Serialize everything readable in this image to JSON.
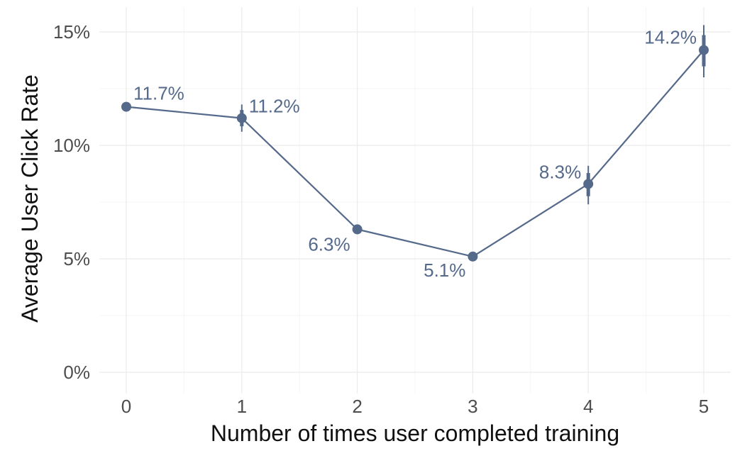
{
  "chart_data": {
    "type": "line",
    "title": "",
    "xlabel": "Number of times user completed training",
    "ylabel": "Average User Click Rate",
    "x": [
      0,
      1,
      2,
      3,
      4,
      5
    ],
    "x_tick_labels": [
      "0",
      "1",
      "2",
      "3",
      "4",
      "5"
    ],
    "xlim": [
      0,
      5
    ],
    "ylim": [
      0,
      15
    ],
    "y_ticks": [
      0,
      5,
      10,
      15
    ],
    "y_tick_labels": [
      "0%",
      "5%",
      "10%",
      "15%"
    ],
    "grid": true,
    "series": [
      {
        "values": [
          11.7,
          11.2,
          6.3,
          5.1,
          8.3,
          14.2
        ],
        "data_labels": [
          "11.7%",
          "11.2%",
          "6.3%",
          "5.1%",
          "8.3%",
          "14.2%"
        ],
        "error_low": [
          11.7,
          10.6,
          6.3,
          5.1,
          7.4,
          13.0
        ],
        "error_high": [
          11.7,
          11.8,
          6.3,
          5.1,
          9.1,
          15.3
        ],
        "color": "#55698a"
      }
    ]
  }
}
